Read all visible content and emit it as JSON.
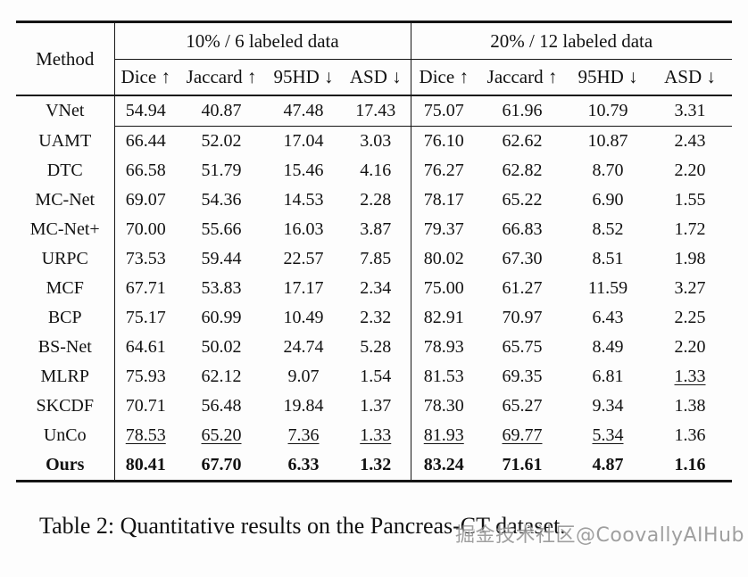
{
  "table": {
    "method_header": "Method",
    "groups": [
      {
        "label": "10% / 6 labeled data",
        "columns": [
          "Dice ↑",
          "Jaccard ↑",
          "95HD ↓",
          "ASD ↓"
        ]
      },
      {
        "label": "20% / 12 labeled data",
        "columns": [
          "Dice ↑",
          "Jaccard ↑",
          "95HD ↓",
          "ASD ↓"
        ]
      }
    ],
    "rows": [
      {
        "method": "VNet",
        "sep_below": true,
        "cells": [
          {
            "v": "54.94"
          },
          {
            "v": "40.87"
          },
          {
            "v": "47.48"
          },
          {
            "v": "17.43"
          },
          {
            "v": "75.07"
          },
          {
            "v": "61.96"
          },
          {
            "v": "10.79"
          },
          {
            "v": "3.31"
          }
        ]
      },
      {
        "method": "UAMT",
        "cells": [
          {
            "v": "66.44"
          },
          {
            "v": "52.02"
          },
          {
            "v": "17.04"
          },
          {
            "v": "3.03"
          },
          {
            "v": "76.10"
          },
          {
            "v": "62.62"
          },
          {
            "v": "10.87"
          },
          {
            "v": "2.43"
          }
        ]
      },
      {
        "method": "DTC",
        "cells": [
          {
            "v": "66.58"
          },
          {
            "v": "51.79"
          },
          {
            "v": "15.46"
          },
          {
            "v": "4.16"
          },
          {
            "v": "76.27"
          },
          {
            "v": "62.82"
          },
          {
            "v": "8.70"
          },
          {
            "v": "2.20"
          }
        ]
      },
      {
        "method": "MC-Net",
        "cells": [
          {
            "v": "69.07"
          },
          {
            "v": "54.36"
          },
          {
            "v": "14.53"
          },
          {
            "v": "2.28"
          },
          {
            "v": "78.17"
          },
          {
            "v": "65.22"
          },
          {
            "v": "6.90"
          },
          {
            "v": "1.55"
          }
        ]
      },
      {
        "method": "MC-Net+",
        "cells": [
          {
            "v": "70.00"
          },
          {
            "v": "55.66"
          },
          {
            "v": "16.03"
          },
          {
            "v": "3.87"
          },
          {
            "v": "79.37"
          },
          {
            "v": "66.83"
          },
          {
            "v": "8.52"
          },
          {
            "v": "1.72"
          }
        ]
      },
      {
        "method": "URPC",
        "cells": [
          {
            "v": "73.53"
          },
          {
            "v": "59.44"
          },
          {
            "v": "22.57"
          },
          {
            "v": "7.85"
          },
          {
            "v": "80.02"
          },
          {
            "v": "67.30"
          },
          {
            "v": "8.51"
          },
          {
            "v": "1.98"
          }
        ]
      },
      {
        "method": "MCF",
        "cells": [
          {
            "v": "67.71"
          },
          {
            "v": "53.83"
          },
          {
            "v": "17.17"
          },
          {
            "v": "2.34"
          },
          {
            "v": "75.00"
          },
          {
            "v": "61.27"
          },
          {
            "v": "11.59"
          },
          {
            "v": "3.27"
          }
        ]
      },
      {
        "method": "BCP",
        "cells": [
          {
            "v": "75.17"
          },
          {
            "v": "60.99"
          },
          {
            "v": "10.49"
          },
          {
            "v": "2.32"
          },
          {
            "v": "82.91"
          },
          {
            "v": "70.97"
          },
          {
            "v": "6.43"
          },
          {
            "v": "2.25"
          }
        ]
      },
      {
        "method": "BS-Net",
        "cells": [
          {
            "v": "64.61"
          },
          {
            "v": "50.02"
          },
          {
            "v": "24.74"
          },
          {
            "v": "5.28"
          },
          {
            "v": "78.93"
          },
          {
            "v": "65.75"
          },
          {
            "v": "8.49"
          },
          {
            "v": "2.20"
          }
        ]
      },
      {
        "method": "MLRP",
        "cells": [
          {
            "v": "75.93"
          },
          {
            "v": "62.12"
          },
          {
            "v": "9.07"
          },
          {
            "v": "1.54"
          },
          {
            "v": "81.53"
          },
          {
            "v": "69.35"
          },
          {
            "v": "6.81"
          },
          {
            "v": "1.33",
            "u": true
          }
        ]
      },
      {
        "method": "SKCDF",
        "cells": [
          {
            "v": "70.71"
          },
          {
            "v": "56.48"
          },
          {
            "v": "19.84"
          },
          {
            "v": "1.37"
          },
          {
            "v": "78.30"
          },
          {
            "v": "65.27"
          },
          {
            "v": "9.34"
          },
          {
            "v": "1.38"
          }
        ]
      },
      {
        "method": "UnCo",
        "cells": [
          {
            "v": "78.53",
            "u": true
          },
          {
            "v": "65.20",
            "u": true
          },
          {
            "v": "7.36",
            "u": true
          },
          {
            "v": "1.33",
            "u": true
          },
          {
            "v": "81.93",
            "u": true
          },
          {
            "v": "69.77",
            "u": true
          },
          {
            "v": "5.34",
            "u": true
          },
          {
            "v": "1.36"
          }
        ]
      },
      {
        "method": "Ours",
        "b": true,
        "cells": [
          {
            "v": "80.41",
            "b": true
          },
          {
            "v": "67.70",
            "b": true
          },
          {
            "v": "6.33",
            "b": true
          },
          {
            "v": "1.32",
            "b": true
          },
          {
            "v": "83.24",
            "b": true
          },
          {
            "v": "71.61",
            "b": true
          },
          {
            "v": "4.87",
            "b": true
          },
          {
            "v": "1.16",
            "b": true
          }
        ]
      }
    ]
  },
  "caption": "Table 2: Quantitative results on the Pancreas-CT dataset.",
  "watermark": "掘金技术社区@CoovallyAIHub"
}
